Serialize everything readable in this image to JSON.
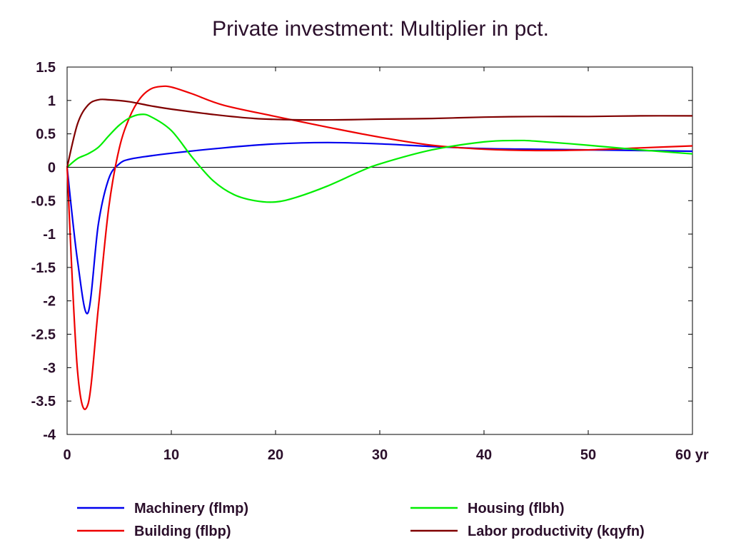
{
  "chart_data": {
    "type": "line",
    "title": "Private investment: Multiplier in pct.",
    "x_unit": "yr",
    "xlim": [
      0,
      60
    ],
    "ylim": [
      -4,
      1.5
    ],
    "x_ticks": [
      0,
      10,
      20,
      30,
      40,
      50,
      60
    ],
    "x_tick_labels": [
      "0",
      "10",
      "20",
      "30",
      "40",
      "50",
      "60 yr"
    ],
    "y_ticks": [
      -4,
      -3.5,
      -3,
      -2.5,
      -2,
      -1.5,
      -1,
      -0.5,
      0,
      0.5,
      1,
      1.5
    ],
    "y_tick_labels": [
      "-4",
      "-3.5",
      "-3",
      "-2.5",
      "-2",
      "-1.5",
      "-1",
      "-0.5",
      "0",
      "0.5",
      "1",
      "1.5"
    ],
    "grid": false,
    "zero_line": true,
    "legend_position": "bottom",
    "series": [
      {
        "name": "Machinery (flmp)",
        "color": "#0000ee",
        "points": [
          [
            0,
            0
          ],
          [
            1,
            -1.4
          ],
          [
            2,
            -2.18
          ],
          [
            3,
            -0.85
          ],
          [
            4,
            -0.17
          ],
          [
            5,
            0.05
          ],
          [
            6,
            0.12
          ],
          [
            8,
            0.17
          ],
          [
            10,
            0.21
          ],
          [
            15,
            0.29
          ],
          [
            20,
            0.35
          ],
          [
            25,
            0.37
          ],
          [
            30,
            0.35
          ],
          [
            35,
            0.31
          ],
          [
            40,
            0.28
          ],
          [
            45,
            0.27
          ],
          [
            50,
            0.26
          ],
          [
            55,
            0.25
          ],
          [
            60,
            0.24
          ]
        ]
      },
      {
        "name": "Building (flbp)",
        "color": "#ee0000",
        "points": [
          [
            0,
            0
          ],
          [
            1,
            -3.05
          ],
          [
            2,
            -3.55
          ],
          [
            3,
            -2.1
          ],
          [
            4,
            -0.6
          ],
          [
            5,
            0.28
          ],
          [
            6,
            0.75
          ],
          [
            7,
            1.03
          ],
          [
            8,
            1.17
          ],
          [
            9,
            1.21
          ],
          [
            10,
            1.2
          ],
          [
            12,
            1.1
          ],
          [
            15,
            0.93
          ],
          [
            20,
            0.76
          ],
          [
            25,
            0.6
          ],
          [
            30,
            0.45
          ],
          [
            35,
            0.33
          ],
          [
            40,
            0.27
          ],
          [
            45,
            0.25
          ],
          [
            50,
            0.26
          ],
          [
            55,
            0.29
          ],
          [
            60,
            0.32
          ]
        ]
      },
      {
        "name": "Housing (flbh)",
        "color": "#00ee00",
        "points": [
          [
            0,
            0
          ],
          [
            1,
            0.13
          ],
          [
            2,
            0.2
          ],
          [
            3,
            0.3
          ],
          [
            4,
            0.47
          ],
          [
            5,
            0.63
          ],
          [
            6,
            0.74
          ],
          [
            7,
            0.79
          ],
          [
            8,
            0.76
          ],
          [
            10,
            0.55
          ],
          [
            12,
            0.15
          ],
          [
            14,
            -0.2
          ],
          [
            16,
            -0.41
          ],
          [
            18,
            -0.5
          ],
          [
            20,
            -0.52
          ],
          [
            22,
            -0.45
          ],
          [
            25,
            -0.28
          ],
          [
            28,
            -0.07
          ],
          [
            30,
            0.05
          ],
          [
            35,
            0.26
          ],
          [
            40,
            0.38
          ],
          [
            43,
            0.4
          ],
          [
            45,
            0.39
          ],
          [
            50,
            0.33
          ],
          [
            55,
            0.26
          ],
          [
            60,
            0.2
          ]
        ]
      },
      {
        "name": "Labor productivity (kqyfn)",
        "color": "#800000",
        "points": [
          [
            0,
            0
          ],
          [
            1,
            0.65
          ],
          [
            2,
            0.93
          ],
          [
            3,
            1.01
          ],
          [
            4,
            1.01
          ],
          [
            6,
            0.98
          ],
          [
            8,
            0.92
          ],
          [
            10,
            0.87
          ],
          [
            14,
            0.79
          ],
          [
            18,
            0.73
          ],
          [
            22,
            0.71
          ],
          [
            26,
            0.71
          ],
          [
            30,
            0.72
          ],
          [
            35,
            0.73
          ],
          [
            40,
            0.75
          ],
          [
            45,
            0.76
          ],
          [
            50,
            0.76
          ],
          [
            55,
            0.77
          ],
          [
            60,
            0.77
          ]
        ]
      }
    ]
  }
}
